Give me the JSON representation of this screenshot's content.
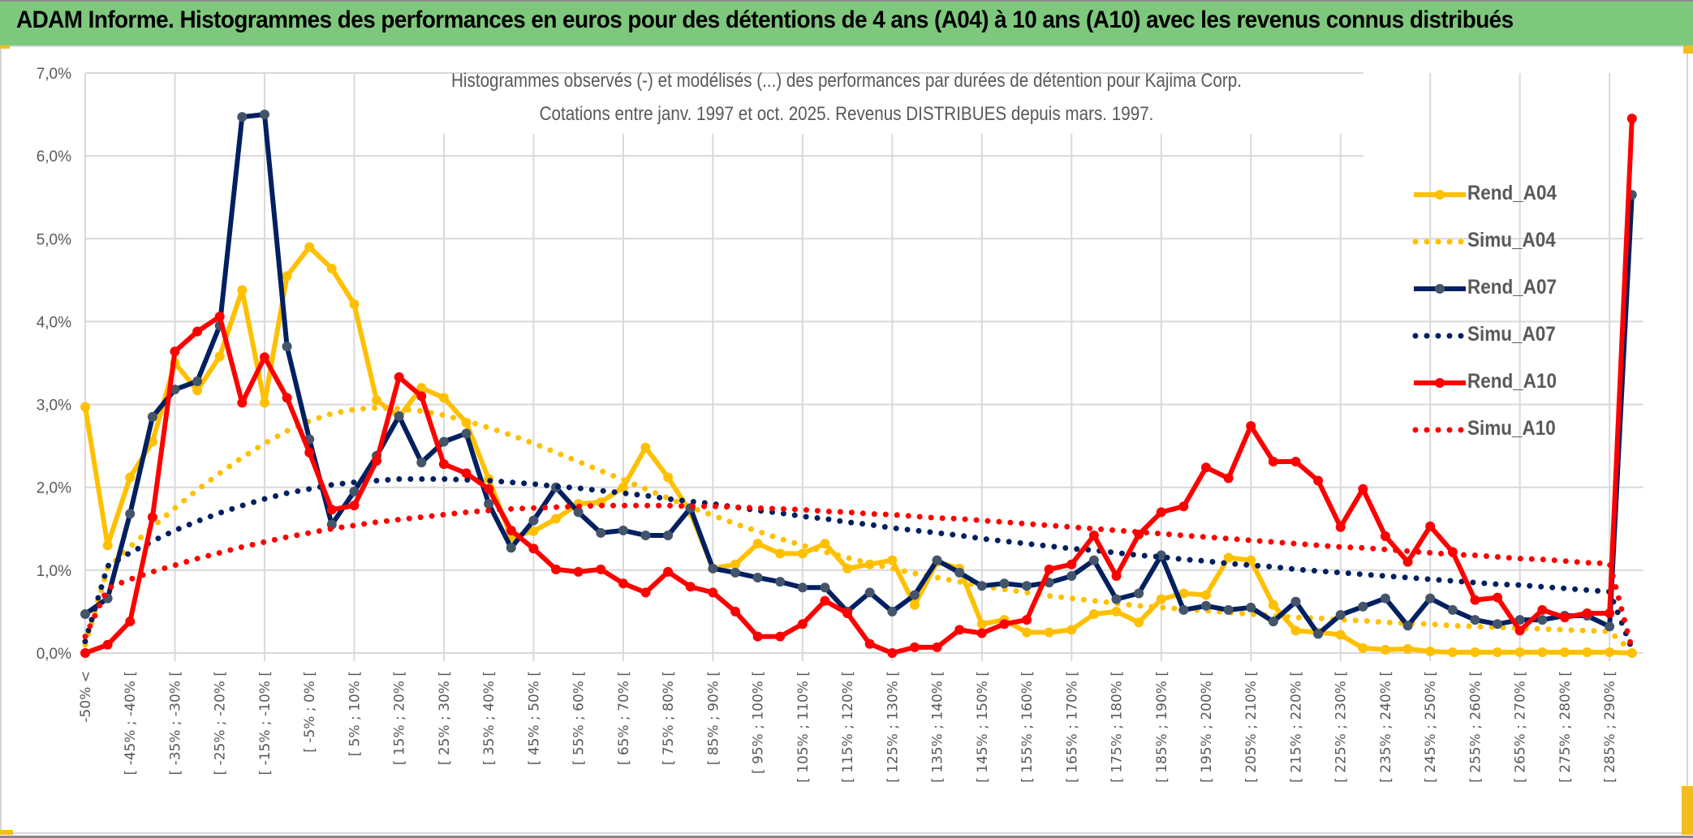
{
  "banner": {
    "title": "ADAM Informe. Histogrammes des performances en euros pour des détentions de 4 ans (A04) à 10 ans (A10) avec les revenus connus distribués"
  },
  "chart_data": {
    "type": "line",
    "title": "Histogrammes observés (-) et modélisés (...) des performances par durées de détention pour Kajima Corp.",
    "subtitle": "Cotations entre janv. 1997 et oct. 2025. Revenus DISTRIBUES depuis mars. 1997.",
    "xlabel": "",
    "ylabel": "",
    "ylim": [
      0,
      7
    ],
    "yunit": "%",
    "yticks": [
      "0,0%",
      "1,0%",
      "2,0%",
      "3,0%",
      "4,0%",
      "5,0%",
      "6,0%",
      "7,0%"
    ],
    "grid": true,
    "legend_position": "right",
    "categories": [
      "-50% <",
      "[ -50% ; -45% [",
      "[ -45% ; -40% [",
      "[ -40% ; -35% [",
      "[ -35% ; -30% [",
      "[ -30% ; -25% [",
      "[ -25% ; -20% [",
      "[ -20% ; -15% [",
      "[ -15% ; -10% [",
      "[ -10% ; -5% [",
      "[ -5% ; 0% [",
      "[ 0% ; 5% [",
      "[ 5% ; 10% [",
      "[ 10% ; 15% [",
      "[ 15% ; 20% [",
      "[ 20% ; 25% [",
      "[ 25% ; 30% [",
      "[ 30% ; 35% [",
      "[ 35% ; 40% [",
      "[ 40% ; 45% [",
      "[ 45% ; 50% [",
      "[ 50% ; 55% [",
      "[ 55% ; 60% [",
      "[ 60% ; 65% [",
      "[ 65% ; 70% [",
      "[ 70% ; 75% [",
      "[ 75% ; 80% [",
      "[ 80% ; 85% [",
      "[ 85% ; 90% [",
      "[ 90% ; 95% [",
      "[ 95% ; 100% [",
      "[ 100% ; 105% [",
      "[ 105% ; 110% [",
      "[ 110% ; 115% [",
      "[ 115% ; 120% [",
      "[ 120% ; 125% [",
      "[ 125% ; 130% [",
      "[ 130% ; 135% [",
      "[ 135% ; 140% [",
      "[ 140% ; 145% [",
      "[ 145% ; 150% [",
      "[ 150% ; 155% [",
      "[ 155% ; 160% [",
      "[ 160% ; 165% [",
      "[ 165% ; 170% [",
      "[ 170% ; 175% [",
      "[ 175% ; 180% [",
      "[ 180% ; 185% [",
      "[ 185% ; 190% [",
      "[ 190% ; 195% [",
      "[ 195% ; 200% [",
      "[ 200% ; 205% [",
      "[ 205% ; 210% [",
      "[ 210% ; 215% [",
      "[ 215% ; 220% [",
      "[ 220% ; 225% [",
      "[ 225% ; 230% [",
      "[ 230% ; 235% [",
      "[ 235% ; 240% [",
      "[ 240% ; 245% [",
      "[ 245% ; 250% [",
      "[ 250% ; 255% [",
      "[ 255% ; 260% [",
      "[ 260% ; 265% [",
      "[ 265% ; 270% [",
      "[ 270% ; 275% [",
      "[ 275% ; 280% [",
      "[ 280% ; 285% [",
      "[ 285% ; 290% [",
      "> 290%"
    ],
    "visible_tick_every": 2,
    "series": [
      {
        "name": "Rend_A04",
        "style": "solid-marker",
        "color": "#ffc000",
        "values": [
          2.97,
          1.3,
          2.12,
          2.55,
          3.5,
          3.17,
          3.58,
          4.38,
          3.02,
          4.55,
          4.9,
          4.64,
          4.21,
          3.05,
          2.85,
          3.2,
          3.08,
          2.78,
          2.1,
          1.4,
          1.47,
          1.62,
          1.8,
          1.82,
          2.0,
          2.48,
          2.12,
          1.7,
          1.02,
          1.07,
          1.32,
          1.2,
          1.2,
          1.32,
          1.02,
          1.07,
          1.12,
          0.58,
          1.1,
          1.02,
          0.35,
          0.4,
          0.25,
          0.25,
          0.28,
          0.47,
          0.5,
          0.37,
          0.65,
          0.72,
          0.7,
          1.15,
          1.12,
          0.58,
          0.27,
          0.25,
          0.22,
          0.06,
          0.04,
          0.05,
          0.02,
          0.01,
          0.01,
          0.01,
          0.01,
          0.01,
          0.01,
          0.01,
          0.01,
          0.0
        ]
      },
      {
        "name": "Simu_A04",
        "style": "dotted",
        "color": "#ffc000",
        "values": [
          0.1,
          1.02,
          1.28,
          1.52,
          1.75,
          1.97,
          2.17,
          2.36,
          2.53,
          2.68,
          2.8,
          2.89,
          2.94,
          2.96,
          2.95,
          2.92,
          2.87,
          2.8,
          2.72,
          2.63,
          2.53,
          2.42,
          2.31,
          2.2,
          2.09,
          1.98,
          1.87,
          1.76,
          1.66,
          1.56,
          1.47,
          1.38,
          1.3,
          1.22,
          1.15,
          1.08,
          1.02,
          0.96,
          0.91,
          0.86,
          0.81,
          0.77,
          0.73,
          0.69,
          0.66,
          0.63,
          0.6,
          0.57,
          0.55,
          0.53,
          0.51,
          0.49,
          0.47,
          0.45,
          0.43,
          0.42,
          0.4,
          0.39,
          0.37,
          0.36,
          0.35,
          0.33,
          0.32,
          0.31,
          0.3,
          0.29,
          0.28,
          0.27,
          0.26,
          0.02
        ]
      },
      {
        "name": "Rend_A07",
        "style": "solid-marker",
        "color": "#002060",
        "values": [
          0.47,
          0.66,
          1.68,
          2.85,
          3.18,
          3.28,
          3.95,
          6.47,
          6.5,
          3.7,
          2.58,
          1.55,
          1.95,
          2.38,
          2.86,
          2.3,
          2.55,
          2.65,
          1.8,
          1.27,
          1.6,
          2.0,
          1.7,
          1.45,
          1.48,
          1.42,
          1.42,
          1.75,
          1.02,
          0.97,
          0.91,
          0.86,
          0.79,
          0.79,
          0.5,
          0.73,
          0.5,
          0.7,
          1.12,
          0.97,
          0.81,
          0.84,
          0.81,
          0.85,
          0.93,
          1.12,
          0.65,
          0.72,
          1.18,
          0.52,
          0.57,
          0.52,
          0.55,
          0.38,
          0.62,
          0.23,
          0.46,
          0.56,
          0.66,
          0.33,
          0.66,
          0.52,
          0.4,
          0.35,
          0.4,
          0.4,
          0.45,
          0.45,
          0.32,
          5.53
        ]
      },
      {
        "name": "Simu_A07",
        "style": "dotted",
        "color": "#002060",
        "values": [
          0.14,
          1.05,
          1.21,
          1.35,
          1.48,
          1.59,
          1.69,
          1.78,
          1.86,
          1.93,
          1.98,
          2.03,
          2.06,
          2.08,
          2.1,
          2.1,
          2.1,
          2.09,
          2.08,
          2.06,
          2.04,
          2.01,
          1.99,
          1.96,
          1.93,
          1.9,
          1.86,
          1.83,
          1.8,
          1.76,
          1.72,
          1.69,
          1.65,
          1.62,
          1.58,
          1.55,
          1.51,
          1.48,
          1.45,
          1.42,
          1.38,
          1.35,
          1.32,
          1.29,
          1.26,
          1.24,
          1.21,
          1.18,
          1.16,
          1.13,
          1.11,
          1.08,
          1.06,
          1.04,
          1.01,
          0.99,
          0.97,
          0.95,
          0.93,
          0.91,
          0.89,
          0.87,
          0.85,
          0.83,
          0.82,
          0.8,
          0.78,
          0.76,
          0.74,
          0.05
        ]
      },
      {
        "name": "Rend_A10",
        "style": "solid-marker",
        "color": "#ff0000",
        "values": [
          0.0,
          0.1,
          0.38,
          1.64,
          3.64,
          3.88,
          4.06,
          3.02,
          3.57,
          3.08,
          2.42,
          1.73,
          1.78,
          2.32,
          3.33,
          3.1,
          2.28,
          2.17,
          1.98,
          1.48,
          1.26,
          1.01,
          0.98,
          1.01,
          0.84,
          0.73,
          0.98,
          0.8,
          0.73,
          0.5,
          0.2,
          0.2,
          0.35,
          0.63,
          0.48,
          0.11,
          0.0,
          0.07,
          0.07,
          0.28,
          0.24,
          0.35,
          0.4,
          1.01,
          1.07,
          1.42,
          0.93,
          1.43,
          1.7,
          1.77,
          2.24,
          2.11,
          2.74,
          2.31,
          2.31,
          2.08,
          1.52,
          1.98,
          1.41,
          1.1,
          1.53,
          1.22,
          0.64,
          0.67,
          0.27,
          0.52,
          0.43,
          0.48,
          0.48,
          6.45
        ]
      },
      {
        "name": "Simu_A10",
        "style": "dotted",
        "color": "#ff0000",
        "values": [
          0.2,
          0.78,
          0.89,
          0.98,
          1.06,
          1.14,
          1.21,
          1.28,
          1.34,
          1.4,
          1.45,
          1.5,
          1.54,
          1.58,
          1.61,
          1.64,
          1.67,
          1.7,
          1.72,
          1.74,
          1.75,
          1.76,
          1.77,
          1.78,
          1.78,
          1.78,
          1.78,
          1.77,
          1.77,
          1.76,
          1.75,
          1.74,
          1.73,
          1.71,
          1.7,
          1.68,
          1.67,
          1.65,
          1.63,
          1.62,
          1.6,
          1.58,
          1.56,
          1.54,
          1.52,
          1.5,
          1.48,
          1.46,
          1.44,
          1.42,
          1.4,
          1.38,
          1.36,
          1.34,
          1.32,
          1.3,
          1.28,
          1.27,
          1.25,
          1.23,
          1.21,
          1.19,
          1.18,
          1.16,
          1.14,
          1.13,
          1.11,
          1.09,
          1.08,
          0.05
        ]
      }
    ]
  }
}
